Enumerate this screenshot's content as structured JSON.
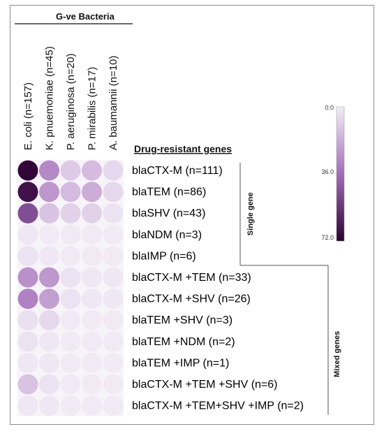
{
  "colors": {
    "low": "#f3eef7",
    "high": "#2c0033",
    "frame": "#8c8c8c"
  },
  "chart_data": {
    "type": "heatmap",
    "title": "G-ve Bacteria",
    "row_header": "Drug-resistant genes",
    "columns": [
      "E. coli (n=157)",
      "K. pnuemoniae (n=45)",
      "P. aeruginosa (n=20)",
      "P. mirabilis (n=17)",
      "A. baumannii (n=10)"
    ],
    "rows": [
      "blaCTX-M (n=111)",
      "blaTEM (n=86)",
      "blaSHV (n=43)",
      "blaNDM (n=3)",
      "blaIMP (n=6)",
      "blaCTX-M +TEM (n=33)",
      "blaCTX-M +SHV (n=26)",
      "blaTEM +SHV (n=3)",
      "blaTEM +NDM (n=2)",
      "blaTEM +IMP (n=1)",
      "blaCTX-M +TEM +SHV (n=6)",
      "blaCTX-M +TEM+SHV +IMP (n=2)"
    ],
    "values": [
      [
        70,
        28,
        10,
        14,
        6
      ],
      [
        66,
        24,
        14,
        18,
        6
      ],
      [
        46,
        12,
        8,
        8,
        3
      ],
      [
        2,
        1,
        1,
        1,
        1
      ],
      [
        3,
        2,
        1,
        1,
        1
      ],
      [
        26,
        24,
        3,
        2,
        2
      ],
      [
        30,
        22,
        3,
        2,
        2
      ],
      [
        4,
        6,
        1,
        1,
        1
      ],
      [
        3,
        2,
        1,
        1,
        1
      ],
      [
        2,
        2,
        1,
        1,
        1
      ],
      [
        12,
        3,
        1,
        1,
        1
      ],
      [
        2,
        2,
        1,
        1,
        1
      ]
    ],
    "groups": [
      {
        "label": "Single gene",
        "rows": [
          0,
          4
        ]
      },
      {
        "label": "Mixed genes",
        "rows": [
          5,
          11
        ]
      }
    ],
    "colorbar": {
      "min": 0,
      "max": 72,
      "ticks": [
        "0.0",
        "36.0",
        "72.0"
      ]
    }
  }
}
